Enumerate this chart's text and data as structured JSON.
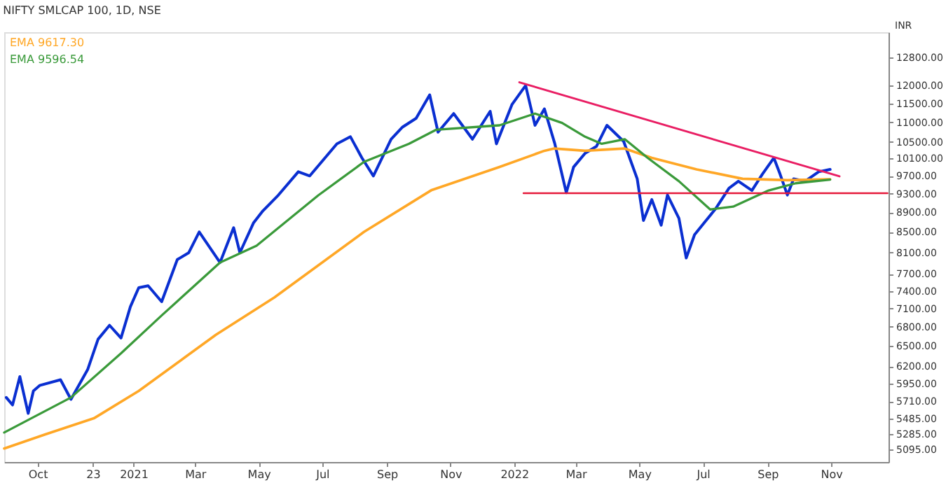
{
  "chart_data": {
    "type": "line",
    "title": "NIFTY SMLCAP 100, 1D, NSE",
    "ylabel": "INR",
    "log": true,
    "grid": false,
    "legend": "top left",
    "marker": "none",
    "line_style": "solid",
    "ylim": [
      4950,
      13590
    ],
    "yticks": [
      {
        "value": 5095,
        "label": "5095.00"
      },
      {
        "value": 5285,
        "label": "5285.00"
      },
      {
        "value": 5485,
        "label": "5485.00"
      },
      {
        "value": 5710,
        "label": "5710.00"
      },
      {
        "value": 5950,
        "label": "5950.00"
      },
      {
        "value": 6200,
        "label": "6200.00"
      },
      {
        "value": 6500,
        "label": "6500.00"
      },
      {
        "value": 6800,
        "label": "6800.00"
      },
      {
        "value": 7100,
        "label": "7100.00"
      },
      {
        "value": 7400,
        "label": "7400.00"
      },
      {
        "value": 7700,
        "label": "7700.00"
      },
      {
        "value": 8100,
        "label": "8100.00"
      },
      {
        "value": 8500,
        "label": "8500.00"
      },
      {
        "value": 8900,
        "label": "8900.00"
      },
      {
        "value": 9300,
        "label": "9300.00"
      },
      {
        "value": 9700,
        "label": "9700.00"
      },
      {
        "value": 10100,
        "label": "10100.00"
      },
      {
        "value": 10500,
        "label": "10500.00"
      },
      {
        "value": 11000,
        "label": "11000.00"
      },
      {
        "value": 11500,
        "label": "11500.00"
      },
      {
        "value": 12000,
        "label": "12000.00"
      },
      {
        "value": 12800,
        "label": "12800.00"
      }
    ],
    "xlim": [
      "2020-08-30",
      "2022-12-26"
    ],
    "xticks": [
      {
        "value": "2020-10-01",
        "label": "Oct"
      },
      {
        "value": "2020-11-23",
        "label": "23"
      },
      {
        "value": "2021-01-01",
        "label": "2021"
      },
      {
        "value": "2021-03-01",
        "label": "Mar"
      },
      {
        "value": "2021-05-01",
        "label": "May"
      },
      {
        "value": "2021-07-01",
        "label": "Jul"
      },
      {
        "value": "2021-09-01",
        "label": "Sep"
      },
      {
        "value": "2021-11-01",
        "label": "Nov"
      },
      {
        "value": "2022-01-01",
        "label": "2022"
      },
      {
        "value": "2022-03-01",
        "label": "Mar"
      },
      {
        "value": "2022-05-01",
        "label": "May"
      },
      {
        "value": "2022-07-01",
        "label": "Jul"
      },
      {
        "value": "2022-09-01",
        "label": "Sep"
      },
      {
        "value": "2022-11-01",
        "label": "Nov"
      }
    ],
    "series": [
      {
        "color": "#0a2fd1",
        "x": [
          "2020-09-01",
          "2020-09-07",
          "2020-09-14",
          "2020-09-22",
          "2020-09-27",
          "2020-10-03",
          "2020-10-23",
          "2020-11-02",
          "2020-11-18",
          "2020-11-28",
          "2020-12-09",
          "2020-12-20",
          "2020-12-29",
          "2021-01-06",
          "2021-01-15",
          "2021-01-28",
          "2021-02-12",
          "2021-02-23",
          "2021-03-05",
          "2021-03-25",
          "2021-04-07",
          "2021-04-13",
          "2021-04-26",
          "2021-05-05",
          "2021-05-20",
          "2021-06-08",
          "2021-06-19",
          "2021-07-15",
          "2021-07-28",
          "2021-08-08",
          "2021-08-19",
          "2021-09-05",
          "2021-09-16",
          "2021-09-29",
          "2021-10-12",
          "2021-10-20",
          "2021-11-04",
          "2021-11-22",
          "2021-12-09",
          "2021-12-15",
          "2021-12-30",
          "2022-01-12",
          "2022-01-21",
          "2022-01-30",
          "2022-02-09",
          "2022-02-20",
          "2022-02-27",
          "2022-03-10",
          "2022-03-21",
          "2022-03-31",
          "2022-04-16",
          "2022-04-29",
          "2022-05-05",
          "2022-05-13",
          "2022-05-22",
          "2022-05-28",
          "2022-06-08",
          "2022-06-15",
          "2022-06-23",
          "2022-07-04",
          "2022-07-13",
          "2022-07-26",
          "2022-08-04",
          "2022-08-17",
          "2022-08-27",
          "2022-09-07",
          "2022-09-13",
          "2022-09-20",
          "2022-09-26",
          "2022-10-07",
          "2022-10-20",
          "2022-10-31"
        ],
        "values": [
          5760,
          5660,
          6050,
          5550,
          5850,
          5925,
          6005,
          5735,
          6150,
          6605,
          6825,
          6625,
          7130,
          7455,
          7490,
          7215,
          7965,
          8095,
          8500,
          7910,
          8585,
          8095,
          8680,
          8930,
          9270,
          9790,
          9695,
          10455,
          10630,
          10115,
          9695,
          10570,
          10875,
          11100,
          11730,
          10745,
          11225,
          10570,
          11285,
          10455,
          11470,
          11990,
          10920,
          11350,
          10455,
          9320,
          9900,
          10225,
          10395,
          10920,
          10515,
          9630,
          8730,
          9170,
          8635,
          9270,
          8775,
          7995,
          8445,
          8730,
          8970,
          9420,
          9575,
          9370,
          9735,
          10115,
          9735,
          9270,
          9630,
          9575,
          9790,
          9845
        ]
      },
      {
        "name": "EMA 9617.30",
        "color": "#ffa726",
        "x": [
          "2020-08-30",
          "2020-10-08",
          "2020-11-24",
          "2021-01-06",
          "2021-03-21",
          "2021-05-16",
          "2021-08-10",
          "2021-10-14",
          "2021-12-18",
          "2022-01-30",
          "2022-02-08",
          "2022-03-10",
          "2022-04-17",
          "2022-05-13",
          "2022-06-25",
          "2022-08-08",
          "2022-09-20",
          "2022-10-31"
        ],
        "values": [
          5110,
          5280,
          5485,
          5850,
          6675,
          7285,
          8500,
          9380,
          9900,
          10285,
          10340,
          10285,
          10340,
          10115,
          9845,
          9630,
          9600,
          9620
        ]
      },
      {
        "name": "EMA 9596.54",
        "color": "#3a9a3a",
        "x": [
          "2020-08-30",
          "2020-11-02",
          "2020-12-20",
          "2021-01-28",
          "2021-03-25",
          "2021-04-29",
          "2021-06-27",
          "2021-08-10",
          "2021-09-22",
          "2021-10-18",
          "2021-12-18",
          "2022-01-21",
          "2022-02-16",
          "2022-03-10",
          "2022-03-26",
          "2022-04-17",
          "2022-05-09",
          "2022-06-08",
          "2022-07-08",
          "2022-07-30",
          "2022-09-02",
          "2022-09-28",
          "2022-10-31"
        ],
        "values": [
          5305,
          5760,
          6390,
          6985,
          7910,
          8230,
          9260,
          10020,
          10455,
          10805,
          10920,
          11225,
          10980,
          10630,
          10455,
          10570,
          10115,
          9575,
          8960,
          9020,
          9370,
          9530,
          9610
        ]
      },
      {
        "color": "#e91e63",
        "x": [
          "2022-01-06",
          "2022-11-09"
        ],
        "values": [
          12080,
          9685
        ]
      },
      {
        "color": "#e5193a",
        "x": [
          "2022-01-10",
          "2022-12-25"
        ],
        "values": [
          9310,
          9310
        ]
      }
    ]
  }
}
